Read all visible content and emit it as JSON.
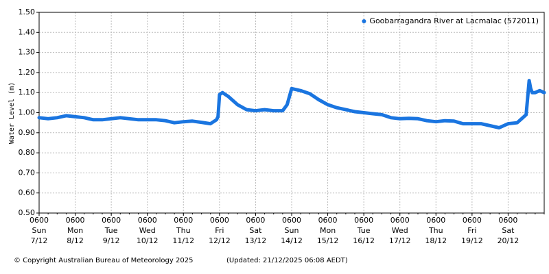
{
  "chart_data": {
    "type": "line",
    "ylabel": "Water Level (m)",
    "ylim": [
      0.5,
      1.5
    ],
    "yticks": [
      {
        "value": 0.5,
        "label": "0.50"
      },
      {
        "value": 0.6,
        "label": "0.60"
      },
      {
        "value": 0.7,
        "label": "0.70"
      },
      {
        "value": 0.8,
        "label": "0.80"
      },
      {
        "value": 0.9,
        "label": "0.90"
      },
      {
        "value": 1.0,
        "label": "1.00"
      },
      {
        "value": 1.1,
        "label": "1.10"
      },
      {
        "value": 1.2,
        "label": "1.20"
      },
      {
        "value": 1.3,
        "label": "1.30"
      },
      {
        "value": 1.4,
        "label": "1.40"
      },
      {
        "value": 1.5,
        "label": "1.50"
      }
    ],
    "xlim": [
      "7/12 0600",
      "21/12 0600"
    ],
    "xticks": [
      {
        "time": "0600",
        "day": "Sun",
        "date": "7/12"
      },
      {
        "time": "0600",
        "day": "Mon",
        "date": "8/12"
      },
      {
        "time": "0600",
        "day": "Tue",
        "date": "9/12"
      },
      {
        "time": "0600",
        "day": "Wed",
        "date": "10/12"
      },
      {
        "time": "0600",
        "day": "Thu",
        "date": "11/12"
      },
      {
        "time": "0600",
        "day": "Fri",
        "date": "12/12"
      },
      {
        "time": "0600",
        "day": "Sat",
        "date": "13/12"
      },
      {
        "time": "0600",
        "day": "Sun",
        "date": "14/12"
      },
      {
        "time": "0600",
        "day": "Mon",
        "date": "15/12"
      },
      {
        "time": "0600",
        "day": "Tue",
        "date": "16/12"
      },
      {
        "time": "0600",
        "day": "Wed",
        "date": "17/12"
      },
      {
        "time": "0600",
        "day": "Thu",
        "date": "18/12"
      },
      {
        "time": "0600",
        "day": "Fri",
        "date": "19/12"
      },
      {
        "time": "0600",
        "day": "Sat",
        "date": "20/12"
      }
    ],
    "grid": true,
    "legend": "top-right",
    "series": [
      {
        "name": "Goobarragandra River at Lacmalac (572011)",
        "color": "#1a75e0",
        "x": [
          "7/12 0600",
          "7/12 1200",
          "7/12 1800",
          "8/12 0000",
          "8/12 0600",
          "8/12 1200",
          "8/12 1800",
          "9/12 0000",
          "9/12 0600",
          "9/12 1200",
          "9/12 1800",
          "10/12 0000",
          "10/12 0600",
          "10/12 1200",
          "10/12 1800",
          "11/12 0000",
          "11/12 0600",
          "11/12 1200",
          "11/12 1800",
          "12/12 0000",
          "12/12 0400",
          "12/12 0500",
          "12/12 0600",
          "12/12 0800",
          "12/12 1200",
          "12/12 1800",
          "13/12 0000",
          "13/12 0600",
          "13/12 1200",
          "13/12 1800",
          "14/12 0000",
          "14/12 0300",
          "14/12 0600",
          "14/12 1200",
          "14/12 1800",
          "15/12 0000",
          "15/12 0600",
          "15/12 1200",
          "15/12 1800",
          "16/12 0000",
          "16/12 0600",
          "16/12 1200",
          "16/12 1800",
          "17/12 0000",
          "17/12 0600",
          "17/12 1200",
          "17/12 1800",
          "18/12 0000",
          "18/12 0600",
          "18/12 1200",
          "18/12 1800",
          "19/12 0000",
          "19/12 0600",
          "19/12 1200",
          "19/12 1800",
          "20/12 0000",
          "20/12 0600",
          "20/12 1200",
          "20/12 1800",
          "20/12 2000",
          "20/12 2100",
          "20/12 2200",
          "21/12 0000",
          "21/12 0300",
          "21/12 0600"
        ],
        "values": [
          0.975,
          0.97,
          0.975,
          0.985,
          0.98,
          0.975,
          0.965,
          0.965,
          0.97,
          0.975,
          0.97,
          0.965,
          0.965,
          0.965,
          0.96,
          0.95,
          0.955,
          0.958,
          0.952,
          0.945,
          0.965,
          0.98,
          1.09,
          1.1,
          1.08,
          1.04,
          1.015,
          1.01,
          1.015,
          1.01,
          1.01,
          1.04,
          1.12,
          1.11,
          1.095,
          1.065,
          1.04,
          1.025,
          1.015,
          1.005,
          1.0,
          0.995,
          0.99,
          0.975,
          0.97,
          0.972,
          0.97,
          0.96,
          0.955,
          0.96,
          0.958,
          0.945,
          0.945,
          0.945,
          0.935,
          0.925,
          0.945,
          0.95,
          0.99,
          1.16,
          1.12,
          1.1,
          1.1,
          1.11,
          1.1
        ]
      }
    ],
    "copyright": "© Copyright Australian Bureau of Meteorology 2025",
    "updated": "(Updated: 21/12/2025 06:08 AEDT)"
  }
}
